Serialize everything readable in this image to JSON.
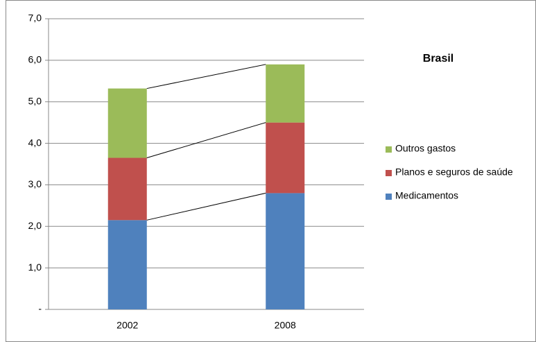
{
  "chart_data": {
    "type": "stacked_bar",
    "title": "Brasil",
    "categories": [
      "2002",
      "2008"
    ],
    "series": [
      {
        "name": "Medicamentos",
        "color": "#4f81bd",
        "values": [
          2.15,
          2.8
        ]
      },
      {
        "name": "Planos e seguros de saúde",
        "color": "#c0504d",
        "values": [
          1.5,
          1.7
        ]
      },
      {
        "name": "Outros gastos",
        "color": "#9bbb59",
        "values": [
          1.67,
          1.4
        ]
      }
    ],
    "ylim": [
      0,
      7
    ],
    "yticks": [
      {
        "value": 0,
        "label": "-"
      },
      {
        "value": 1,
        "label": "1,0"
      },
      {
        "value": 2,
        "label": "2,0"
      },
      {
        "value": 3,
        "label": "3,0"
      },
      {
        "value": 4,
        "label": "4,0"
      },
      {
        "value": 5,
        "label": "5,0"
      },
      {
        "value": 6,
        "label": "6,0"
      },
      {
        "value": 7,
        "label": "7,0"
      }
    ],
    "grid": true,
    "legend": "right",
    "series_lines": true
  }
}
